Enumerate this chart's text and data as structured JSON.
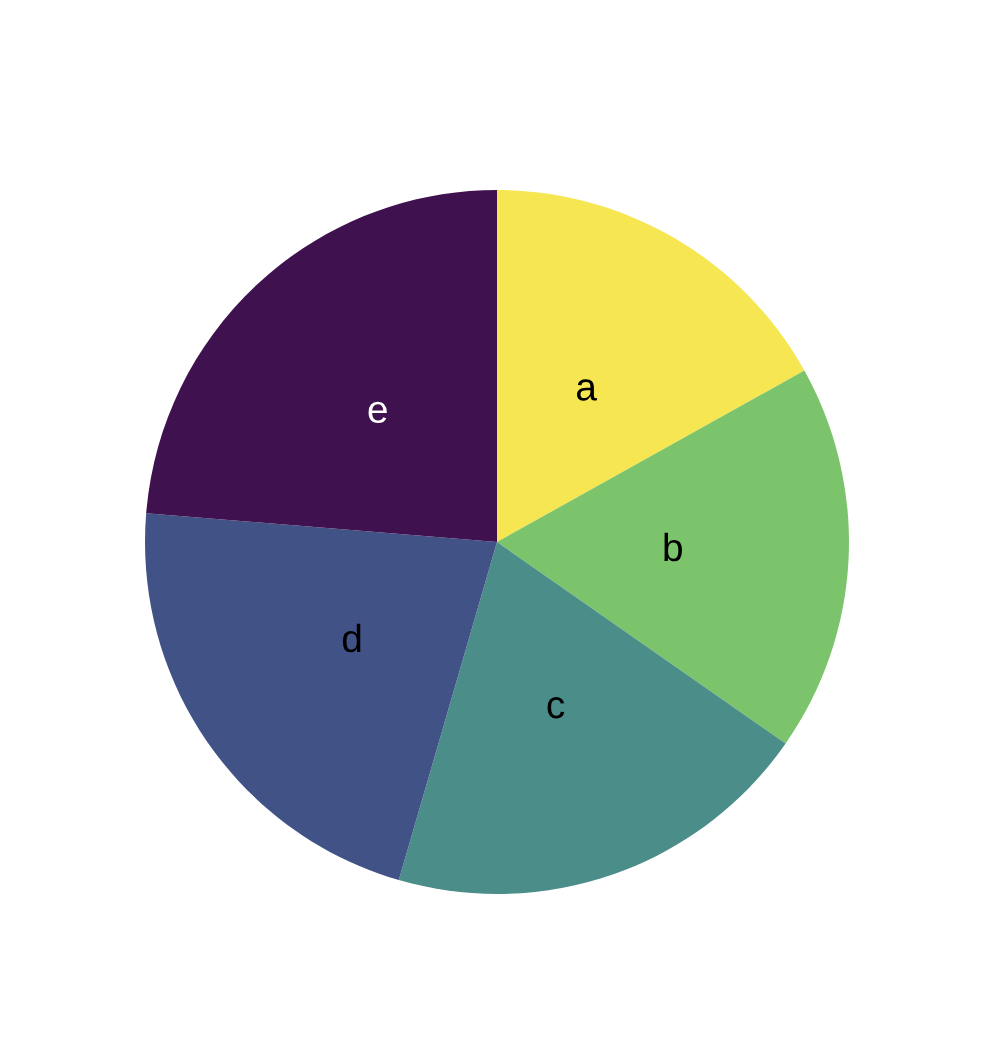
{
  "chart_data": {
    "type": "pie",
    "categories": [
      "a",
      "b",
      "c",
      "d",
      "e"
    ],
    "values": [
      16.9,
      17.8,
      19.8,
      21.8,
      23.7
    ],
    "colors": [
      "#f6e652",
      "#7bc46c",
      "#4a8d89",
      "#415286",
      "#3f114f"
    ]
  }
}
